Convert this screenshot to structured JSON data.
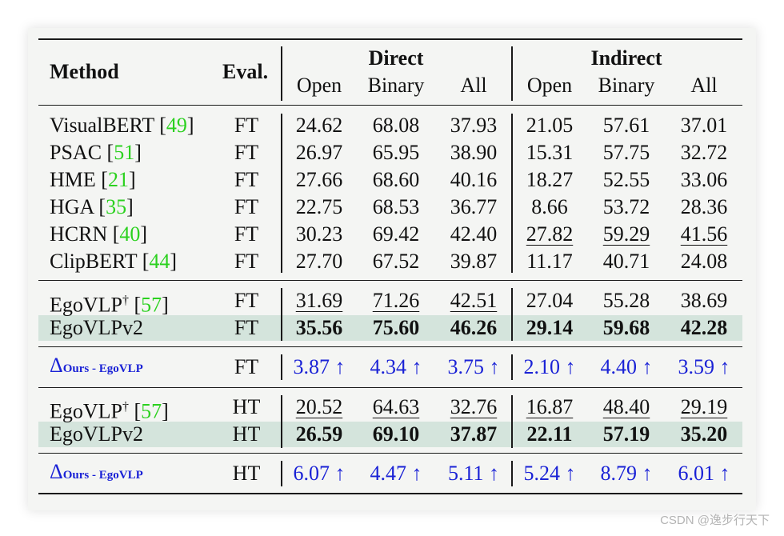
{
  "header": {
    "method": "Method",
    "eval": "Eval.",
    "direct": "Direct",
    "indirect": "Indirect",
    "sub": [
      "Open",
      "Binary",
      "All",
      "Open",
      "Binary",
      "All"
    ]
  },
  "rows": [
    {
      "method": "VisualBERT [",
      "cite": "49",
      "close": "]",
      "sup": "",
      "eval": "FT",
      "values": [
        "24.62",
        "68.08",
        "37.93",
        "21.05",
        "57.61",
        "37.01"
      ]
    },
    {
      "method": "PSAC [",
      "cite": "51",
      "close": "]",
      "sup": "",
      "eval": "FT",
      "values": [
        "26.97",
        "65.95",
        "38.90",
        "15.31",
        "57.75",
        "32.72"
      ]
    },
    {
      "method": "HME [",
      "cite": "21",
      "close": "]",
      "sup": "",
      "eval": "FT",
      "values": [
        "27.66",
        "68.60",
        "40.16",
        "18.27",
        "52.55",
        "33.06"
      ]
    },
    {
      "method": "HGA [",
      "cite": "35",
      "close": "]",
      "sup": "",
      "eval": "FT",
      "values": [
        "22.75",
        "68.53",
        "36.77",
        "8.66",
        "53.72",
        "28.36"
      ]
    },
    {
      "method": "HCRN [",
      "cite": "40",
      "close": "]",
      "sup": "",
      "eval": "FT",
      "values": [
        "30.23",
        "69.42",
        "42.40",
        "27.82",
        "59.29",
        "41.56"
      ]
    },
    {
      "method": "ClipBERT [",
      "cite": "44",
      "close": "]",
      "sup": "",
      "eval": "FT",
      "values": [
        "27.70",
        "67.52",
        "39.87",
        "11.17",
        "40.71",
        "24.08"
      ]
    },
    {
      "method": "EgoVLP",
      "sup": "†",
      "cite_open": " [",
      "cite": "57",
      "close": "]",
      "eval": "FT",
      "values": [
        "31.69",
        "71.26",
        "42.51",
        "27.04",
        "55.28",
        "38.69"
      ]
    },
    {
      "method": "EgoVLPv2",
      "eval": "FT",
      "values": [
        "35.56",
        "75.60",
        "46.26",
        "29.14",
        "59.68",
        "42.28"
      ]
    },
    {
      "delta": "Δ",
      "delta_sub": "Ours - EgoVLP",
      "eval": "FT",
      "values": [
        "3.87 ↑",
        "4.34 ↑",
        "3.75 ↑",
        "2.10 ↑",
        "4.40 ↑",
        "3.59 ↑"
      ]
    },
    {
      "method": "EgoVLP",
      "sup": "†",
      "cite_open": " [",
      "cite": "57",
      "close": "]",
      "eval": "HT",
      "values": [
        "20.52",
        "64.63",
        "32.76",
        "16.87",
        "48.40",
        "29.19"
      ]
    },
    {
      "method": "EgoVLPv2",
      "eval": "HT",
      "values": [
        "26.59",
        "69.10",
        "37.87",
        "22.11",
        "57.19",
        "35.20"
      ]
    },
    {
      "delta": "Δ",
      "delta_sub": "Ours - EgoVLP",
      "eval": "HT",
      "values": [
        "6.07 ↑",
        "4.47 ↑",
        "5.11 ↑",
        "5.24 ↑",
        "8.79 ↑",
        "6.01 ↑"
      ]
    }
  ],
  "watermark": "CSDN @逸步行天下"
}
